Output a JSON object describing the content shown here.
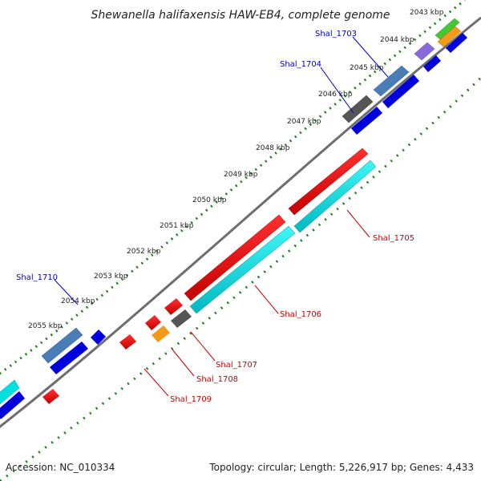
{
  "title": "Shewanella halifaxensis HAW-EB4, complete genome",
  "footer": {
    "accession": "Accession: NC_010334",
    "summary": "Topology: circular; Length: 5,226,917 bp; Genes: 4,433"
  },
  "ticks": [
    "2043 kbp",
    "2044 kbp",
    "2045 kbp",
    "2046 kbp",
    "2047 kbp",
    "2048 kbp",
    "2049 kbp",
    "2050 kbp",
    "2051 kbp",
    "2052 kbp",
    "2053 kbp",
    "2054 kbp",
    "2055 kbp"
  ],
  "genes": {
    "shal_1703": "Shal_1703",
    "shal_1704": "Shal_1704",
    "shal_1705": "Shal_1705",
    "shal_1706": "Shal_1706",
    "shal_1707": "Shal_1707",
    "shal_1708": "Shal_1708",
    "shal_1709": "Shal_1709",
    "shal_1710": "Shal_1710"
  },
  "colors": {
    "backbone": "#6e6e6e",
    "tick_dots": "#1e7d1e",
    "forward_cds": "#0000dd",
    "steelblue_cds": "#4a7db5",
    "red_cds": "#ee0000",
    "cyan_cds": "#00e0e0",
    "gray_cds": "#555555",
    "orange_cds": "#f59a16",
    "green_cds": "#44c832",
    "purple_cds": "#8a6ad8",
    "blue_label": "#0000cc",
    "red_label": "#cc0000"
  }
}
